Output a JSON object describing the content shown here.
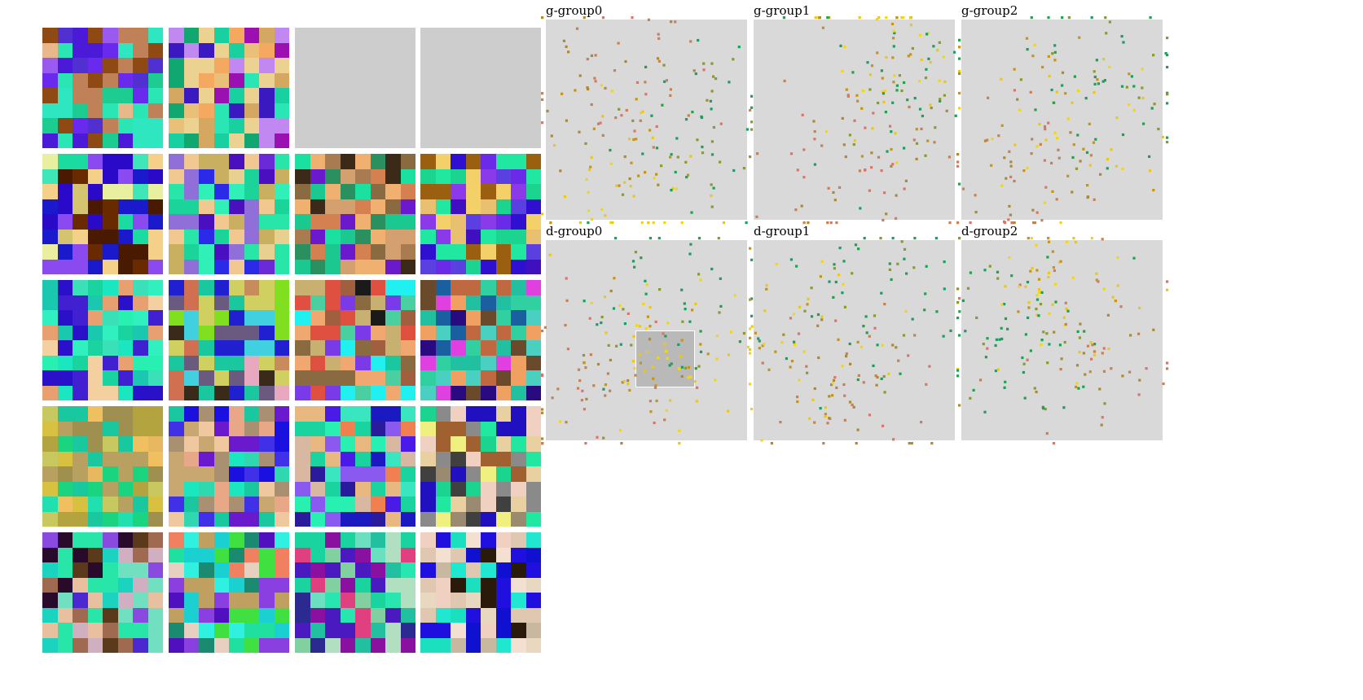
{
  "plots": [
    {
      "id": "g0",
      "title": "g-group0"
    },
    {
      "id": "g1",
      "title": "g-group1"
    },
    {
      "id": "g2",
      "title": "g-group2"
    },
    {
      "id": "d0",
      "title": "d-group0"
    },
    {
      "id": "d1",
      "title": "d-group1"
    },
    {
      "id": "d2",
      "title": "d-group2"
    }
  ],
  "colors": {
    "background": "#ffffff",
    "plot_bg": "#d9d9d9",
    "empty_tile": "#cdcdcd",
    "brush": "#b9b9b9",
    "point_palette": [
      "#d4786c",
      "#c48256",
      "#a88a3a",
      "#8a9a2e",
      "#22a050",
      "#18a060",
      "#e8c81c",
      "#f2d616",
      "#c69418"
    ]
  },
  "tiles": [
    {
      "empty": false,
      "palette": [
        "#2ae6b4",
        "#1ccc90",
        "#e8b88a",
        "#c08058",
        "#6a2aee",
        "#4a1ad8",
        "#8e4a12",
        "#2ee6c0",
        "#9a5af0",
        "#5030d0"
      ]
    },
    {
      "empty": false,
      "palette": [
        "#e8c078",
        "#d4a860",
        "#18d0a0",
        "#2ae6b4",
        "#f4a860",
        "#3a1ac0",
        "#c088f0",
        "#10a870",
        "#9a10b0",
        "#ecd290"
      ]
    },
    {
      "empty": true
    },
    {
      "empty": true
    },
    {
      "empty": false,
      "palette": [
        "#8a4af0",
        "#1adca0",
        "#f4d088",
        "#4a1a00",
        "#2a0ac8",
        "#6a2a00",
        "#3ee6b8",
        "#e8f0a0",
        "#d4c470",
        "#1a1acc"
      ]
    },
    {
      "empty": false,
      "palette": [
        "#4a10c0",
        "#28e6a8",
        "#e8d090",
        "#1ad49a",
        "#6a2ad8",
        "#2a2ae8",
        "#c8b060",
        "#30f0b8",
        "#9070d8",
        "#f0c890"
      ]
    },
    {
      "empty": false,
      "palette": [
        "#a87c50",
        "#d4a070",
        "#3c2a18",
        "#1ac890",
        "#6a1acc",
        "#2a9060",
        "#d48050",
        "#f0b070",
        "#1ae0a0",
        "#8a6a40"
      ]
    },
    {
      "empty": false,
      "palette": [
        "#20e8a0",
        "#e8c070",
        "#4010c0",
        "#6a2ae8",
        "#3010d0",
        "#f4d068",
        "#1ad490",
        "#8a3ae8",
        "#9a6010",
        "#5a40e0"
      ]
    },
    {
      "empty": false,
      "palette": [
        "#1ae6c0",
        "#28f0b0",
        "#f4d0a0",
        "#2a10c8",
        "#1ad4a0",
        "#e8a070",
        "#4020d0",
        "#30f0c0",
        "#3ae0b8",
        "#1ac8b0"
      ]
    },
    {
      "empty": false,
      "palette": [
        "#c88c5c",
        "#d07050",
        "#1ac8a0",
        "#6a5a80",
        "#e8a8c0",
        "#80e020",
        "#d0d060",
        "#40d0e0",
        "#3a2a1a",
        "#2020d0"
      ]
    },
    {
      "empty": false,
      "palette": [
        "#8a6a40",
        "#1ac8a0",
        "#f0a870",
        "#1a1a1a",
        "#20f0f0",
        "#a06040",
        "#e05040",
        "#4ad0a0",
        "#7a3ae8",
        "#c8b070"
      ]
    },
    {
      "empty": false,
      "palette": [
        "#6a4a2a",
        "#c06840",
        "#20c0a0",
        "#e040e0",
        "#4ad0c0",
        "#2a0a80",
        "#f0a060",
        "#1a60a0",
        "#e04020",
        "#30d0a0"
      ]
    },
    {
      "empty": false,
      "palette": [
        "#c8c860",
        "#b4a440",
        "#1ad480",
        "#d8c040",
        "#e8b860",
        "#1ac8a0",
        "#a09050",
        "#f0c060",
        "#20e0b0",
        "#b8a060"
      ]
    },
    {
      "empty": false,
      "palette": [
        "#6a1acc",
        "#1ac8a0",
        "#e8a888",
        "#1a10e0",
        "#c8a870",
        "#1ae6c0",
        "#f0c8a0",
        "#4030e8",
        "#30d8b0",
        "#a89070"
      ]
    },
    {
      "empty": false,
      "palette": [
        "#1ad4a0",
        "#e8b880",
        "#2a1a9c",
        "#4a1ae8",
        "#8a5af0",
        "#f08050",
        "#28f0b0",
        "#1a1ac0",
        "#d8b8a0",
        "#3ae6c0"
      ]
    },
    {
      "empty": false,
      "palette": [
        "#9a8a70",
        "#1ad490",
        "#e8d0a0",
        "#404040",
        "#f0f080",
        "#2010c0",
        "#a06030",
        "#f0d0c0",
        "#20e8a0",
        "#8a8a8a"
      ]
    },
    {
      "empty": false,
      "palette": [
        "#4a2ad0",
        "#28e6a8",
        "#8a4ae0",
        "#5a3a1a",
        "#e8c0a0",
        "#1ad4c0",
        "#a06a50",
        "#2a0a2a",
        "#70e0c0",
        "#d0b0c0"
      ]
    },
    {
      "empty": false,
      "palette": [
        "#20e0a0",
        "#5010c0",
        "#f08060",
        "#1a8a70",
        "#e8d0c0",
        "#30f0e0",
        "#c0a060",
        "#1ad0d0",
        "#40e040",
        "#8a40e0"
      ]
    },
    {
      "empty": false,
      "palette": [
        "#8a10a0",
        "#28e6b0",
        "#4a1ac0",
        "#1ad4a0",
        "#e04080",
        "#6ae0c0",
        "#2a2a90",
        "#80d0a0",
        "#20c0a0",
        "#b0e0c0"
      ]
    },
    {
      "empty": false,
      "palette": [
        "#e8d8c0",
        "#2010e0",
        "#20e8d0",
        "#f0d0c0",
        "#1ae0c0",
        "#c8b8a0",
        "#1010d0",
        "#e0c8b0",
        "#2a1a0a",
        "#f4e0d0"
      ]
    }
  ]
}
